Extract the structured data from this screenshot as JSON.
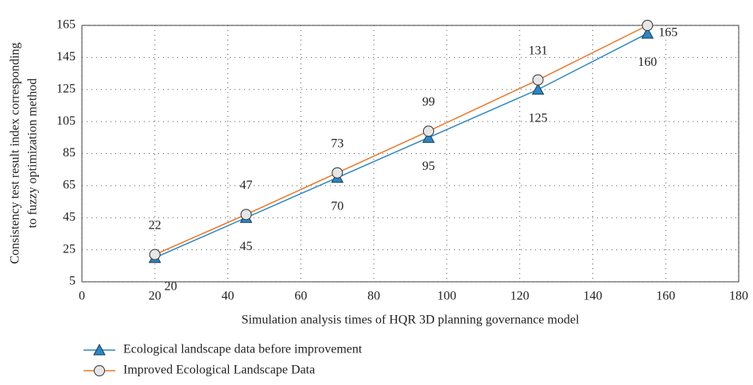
{
  "chart_data": {
    "type": "line",
    "xlabel": "Simulation analysis times of HQR 3D planning governance model",
    "ylabel": [
      "Consistency test result index corresponding",
      "to fuzzy optimization method"
    ],
    "x": [
      20,
      45,
      70,
      95,
      125,
      155
    ],
    "series": [
      {
        "name": "Ecological landscape data before improvement",
        "color": "#2e86c1",
        "marker": "triangle",
        "values": [
          20,
          45,
          70,
          95,
          125,
          160
        ]
      },
      {
        "name": "Improved Ecological Landscape Data",
        "color": "#e8782a",
        "marker": "circle",
        "values": [
          22,
          47,
          73,
          99,
          131,
          165
        ]
      }
    ],
    "xlim": [
      0,
      180
    ],
    "xticks": [
      0,
      20,
      40,
      60,
      80,
      100,
      120,
      140,
      160,
      180
    ],
    "ylim": [
      5,
      165
    ],
    "yticks": [
      5,
      25,
      45,
      65,
      85,
      105,
      125,
      145,
      165
    ],
    "grid": true,
    "legend": "bottom-left"
  }
}
